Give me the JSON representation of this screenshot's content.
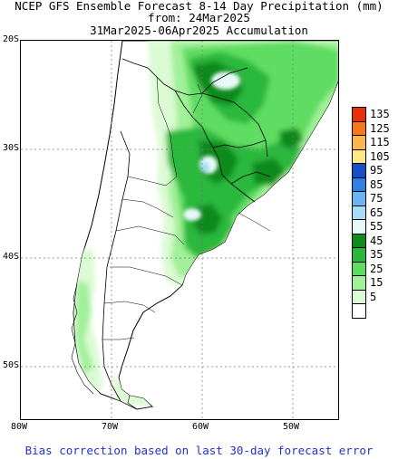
{
  "title": {
    "line1": "NCEP GFS Ensemble Forecast 8-14 Day Precipitation (mm)",
    "line2": "from: 24Mar2025",
    "line3": "31Mar2025-06Apr2025 Accumulation"
  },
  "map": {
    "lat_labels": [
      "20S",
      "30S",
      "40S",
      "50S"
    ],
    "lon_labels": [
      "80W",
      "70W",
      "60W",
      "50W"
    ]
  },
  "legend": {
    "levels": [
      {
        "label": "135",
        "color": "#e8300c"
      },
      {
        "label": "125",
        "color": "#f6781a"
      },
      {
        "label": "115",
        "color": "#fcb64a"
      },
      {
        "label": "105",
        "color": "#fde789"
      },
      {
        "label": "95",
        "color": "#1550c8"
      },
      {
        "label": "85",
        "color": "#2f7fe8"
      },
      {
        "label": "75",
        "color": "#6ab4f2"
      },
      {
        "label": "65",
        "color": "#a6dcf5"
      },
      {
        "label": "55",
        "color": "#e6f9f7"
      },
      {
        "label": "45",
        "color": "#0f8a1c"
      },
      {
        "label": "35",
        "color": "#2ab83c"
      },
      {
        "label": "25",
        "color": "#5fdc62"
      },
      {
        "label": "15",
        "color": "#a2f09a"
      },
      {
        "label": "5",
        "color": "#dcfad4"
      },
      {
        "label": "",
        "color": "#ffffff"
      }
    ]
  },
  "footer": "Bias correction based on last 30-day forecast error"
}
